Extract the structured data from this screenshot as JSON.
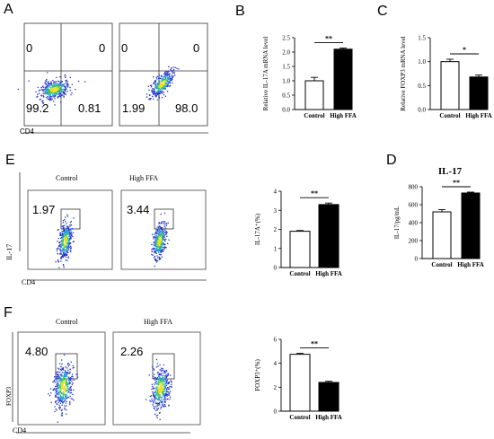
{
  "panels": {
    "A": {
      "label": "A",
      "x_axis": "CD4",
      "plots": [
        {
          "quadrants": {
            "ul": "0",
            "ur": "0",
            "ll": "99.2",
            "lr": "0.81"
          }
        },
        {
          "quadrants": {
            "ul": "0",
            "ur": "0",
            "ll": "1.99",
            "lr": "98.0"
          }
        }
      ]
    },
    "E": {
      "label": "E",
      "titles": [
        "Control",
        "High FFA"
      ],
      "x_axis": "CD4",
      "y_axis": "IL-17",
      "gates": [
        "1.97",
        "3.44"
      ]
    },
    "F": {
      "label": "F",
      "titles": [
        "Control",
        "High FFA"
      ],
      "x_axis": "CD4",
      "y_axis": "FOXP3",
      "gates": [
        "4.80",
        "2.26"
      ]
    }
  },
  "chart_data": [
    {
      "panel": "B",
      "type": "bar",
      "categories": [
        "Control",
        "High FFA"
      ],
      "values": [
        1.0,
        2.1
      ],
      "errors": [
        0.12,
        0.04
      ],
      "fill": [
        "#ffffff",
        "#000000"
      ],
      "ylabel": "Relative IL-17A mRNA level",
      "ylim": [
        0,
        2.5
      ],
      "yticks": [
        "0.0",
        "0.5",
        "1.0",
        "1.5",
        "2.0",
        "2.5"
      ],
      "significance": "**"
    },
    {
      "panel": "C",
      "type": "bar",
      "categories": [
        "Control",
        "High FFA"
      ],
      "values": [
        1.0,
        0.68
      ],
      "errors": [
        0.05,
        0.04
      ],
      "fill": [
        "#ffffff",
        "#000000"
      ],
      "ylabel": "Relative FOXP3 mRNA level",
      "ylim": [
        0,
        1.5
      ],
      "yticks": [
        "0.0",
        "0.5",
        "1.0",
        "1.5"
      ],
      "significance": "*"
    },
    {
      "panel": "E",
      "type": "bar",
      "categories": [
        "Control",
        "High FFA"
      ],
      "values": [
        1.9,
        3.3
      ],
      "errors": [
        0.04,
        0.08
      ],
      "fill": [
        "#ffffff",
        "#000000"
      ],
      "ylabel": "IL-17A⁺(%)",
      "ylim": [
        0,
        4
      ],
      "yticks": [
        "0",
        "1",
        "2",
        "3",
        "4"
      ],
      "significance": "**"
    },
    {
      "panel": "D",
      "type": "bar",
      "title": "IL-17",
      "categories": [
        "Control",
        "High FFA"
      ],
      "values": [
        520,
        730
      ],
      "errors": [
        25,
        10
      ],
      "fill": [
        "#ffffff",
        "#000000"
      ],
      "ylabel": "IL-17/pg/mL",
      "ylim": [
        0,
        800
      ],
      "yticks": [
        "0",
        "200",
        "400",
        "600",
        "800"
      ],
      "significance": "**"
    },
    {
      "panel": "F",
      "type": "bar",
      "categories": [
        "Control",
        "High FFA"
      ],
      "values": [
        4.75,
        2.4
      ],
      "errors": [
        0.08,
        0.1
      ],
      "fill": [
        "#ffffff",
        "#000000"
      ],
      "ylabel": "FOXP3⁺(%)",
      "ylim": [
        0,
        6
      ],
      "yticks": [
        "0",
        "2",
        "4",
        "6"
      ],
      "significance": "**"
    }
  ]
}
